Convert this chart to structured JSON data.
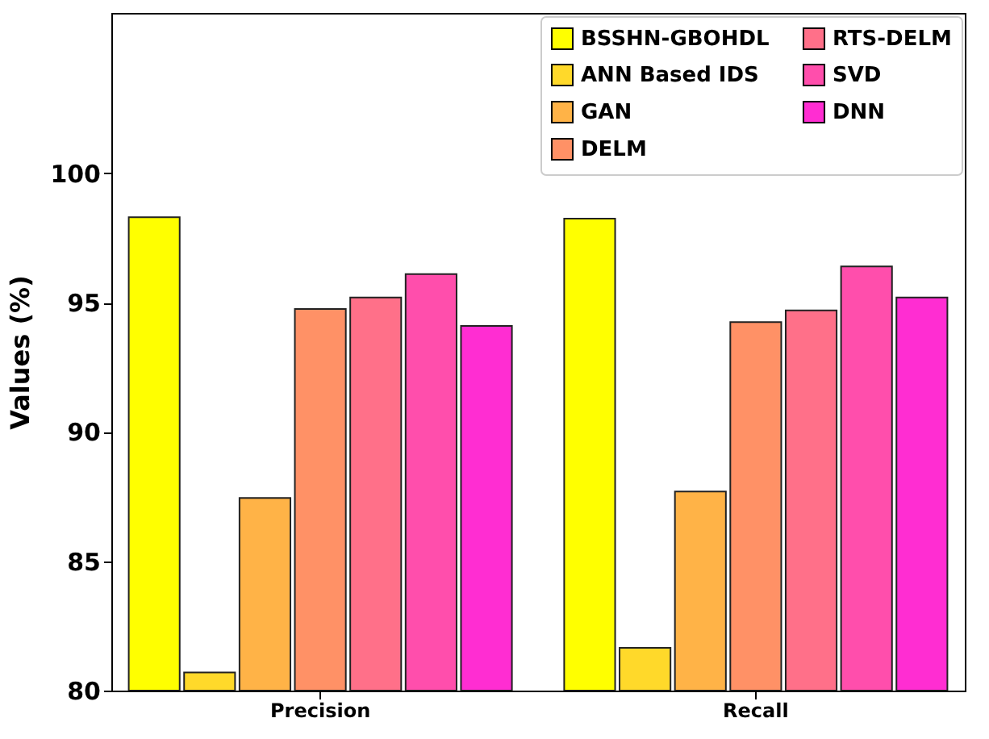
{
  "chart_data": {
    "type": "bar",
    "ylabel": "Values (%)",
    "categories": [
      "Precision",
      "Recall"
    ],
    "series": [
      {
        "name": "BSSHN-GBOHDL",
        "color": "#ffff00",
        "values": [
          98.3,
          98.25
        ]
      },
      {
        "name": "ANN Based IDS",
        "color": "#ffd92a",
        "values": [
          80.7,
          81.65
        ]
      },
      {
        "name": "GAN",
        "color": "#ffb347",
        "values": [
          87.45,
          87.7
        ]
      },
      {
        "name": "DELM",
        "color": "#ff9166",
        "values": [
          94.75,
          94.25
        ]
      },
      {
        "name": "RTS-DELM",
        "color": "#ff7089",
        "values": [
          95.2,
          94.7
        ]
      },
      {
        "name": "SVD",
        "color": "#ff4eac",
        "values": [
          96.1,
          96.4
        ]
      },
      {
        "name": "DNN",
        "color": "#ff2dd2",
        "values": [
          94.1,
          95.2
        ]
      }
    ],
    "ylim": [
      80,
      106.2
    ],
    "yticks": [
      80,
      85,
      90,
      95,
      100
    ],
    "grid": false,
    "legend": "top right"
  }
}
